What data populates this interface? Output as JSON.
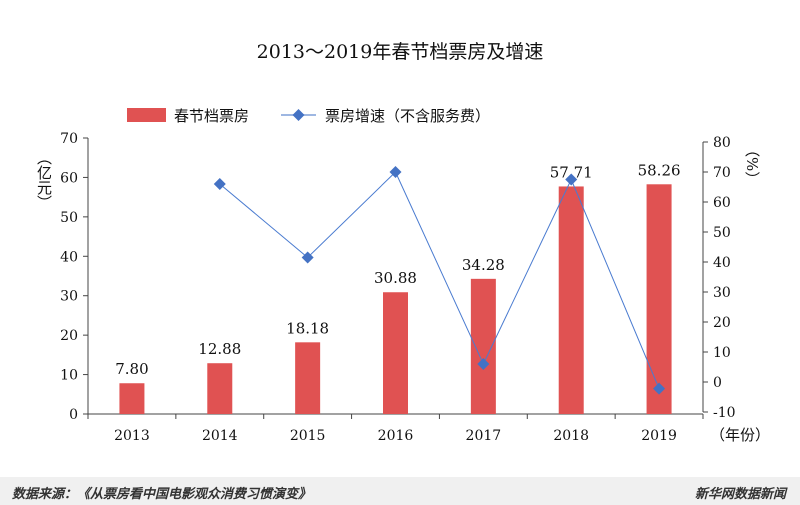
{
  "chart_data": {
    "type": "bar+line",
    "title": "2013～2019年春节档票房及增速",
    "categories": [
      "2013",
      "2014",
      "2015",
      "2016",
      "2017",
      "2018",
      "2019"
    ],
    "series": [
      {
        "name": "春节档票房",
        "type": "bar",
        "axis": "left",
        "values": [
          7.8,
          12.88,
          18.18,
          30.88,
          34.28,
          57.71,
          58.26
        ],
        "labels": [
          "7.80",
          "12.88",
          "18.18",
          "30.88",
          "34.28",
          "57.71",
          "58.26"
        ],
        "color": "#e05252"
      },
      {
        "name": "票房增速（不含服务费）",
        "type": "line",
        "axis": "right",
        "values": [
          null,
          66.0,
          41.5,
          70.0,
          6.0,
          67.5,
          -2.2
        ],
        "color": "#4a7bd0",
        "marker_color": "#4472c4"
      }
    ],
    "ylabel_left": "（亿元）",
    "ylabel_right": "（%）",
    "xlabel": "（年份）",
    "ylim_left": [
      0,
      70
    ],
    "yticks_left": [
      0,
      10,
      20,
      30,
      40,
      50,
      60,
      70
    ],
    "ylim_right": [
      -10,
      80
    ],
    "yticks_right": [
      -10,
      0,
      10,
      20,
      30,
      40,
      50,
      60,
      70,
      80
    ],
    "legend_position": "top",
    "grid": false
  },
  "footer": {
    "source": "数据来源：《从票房看中国电影观众消费习惯演变》",
    "brand": "新华网数据新闻"
  }
}
